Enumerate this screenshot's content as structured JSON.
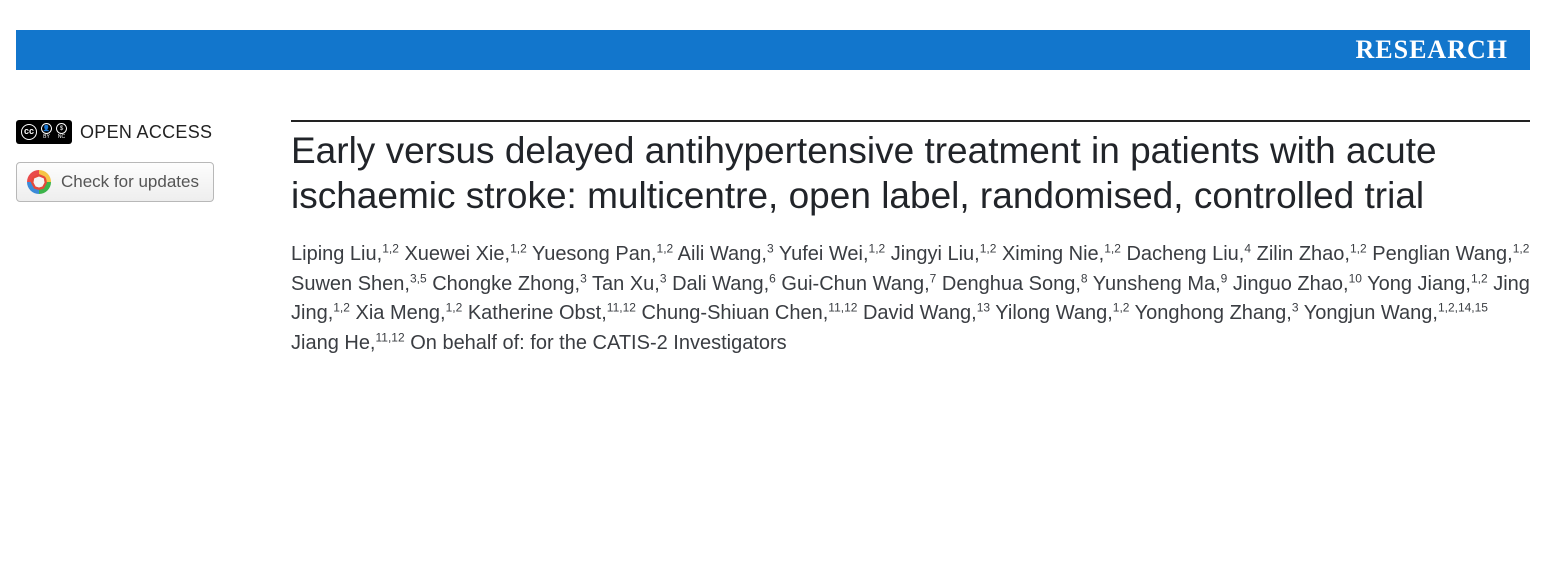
{
  "banner": {
    "label": "RESEARCH",
    "background_color": "#1276cc",
    "text_color": "#ffffff"
  },
  "sidebar": {
    "open_access_label": "OPEN ACCESS",
    "cc_badge": {
      "cc": "cc",
      "by": "BY",
      "nc": "NC"
    },
    "check_updates_label": "Check for updates"
  },
  "article": {
    "title": "Early versus delayed antihypertensive treatment in patients with acute ischaemic stroke: multicentre, open label, randomised, controlled trial",
    "authors": [
      {
        "name": "Liping Liu",
        "affil": "1,2"
      },
      {
        "name": "Xuewei Xie",
        "affil": "1,2"
      },
      {
        "name": "Yuesong Pan",
        "affil": "1,2"
      },
      {
        "name": "Aili Wang",
        "affil": "3"
      },
      {
        "name": "Yufei Wei",
        "affil": "1,2"
      },
      {
        "name": "Jingyi Liu",
        "affil": "1,2"
      },
      {
        "name": "Ximing Nie",
        "affil": "1,2"
      },
      {
        "name": "Dacheng Liu",
        "affil": "4"
      },
      {
        "name": "Zilin Zhao",
        "affil": "1,2"
      },
      {
        "name": "Penglian Wang",
        "affil": "1,2"
      },
      {
        "name": "Suwen Shen",
        "affil": "3,5"
      },
      {
        "name": "Chongke Zhong",
        "affil": "3"
      },
      {
        "name": "Tan Xu",
        "affil": "3"
      },
      {
        "name": "Dali Wang",
        "affil": "6"
      },
      {
        "name": "Gui-Chun Wang",
        "affil": "7"
      },
      {
        "name": "Denghua Song",
        "affil": "8"
      },
      {
        "name": "Yunsheng Ma",
        "affil": "9"
      },
      {
        "name": "Jinguo Zhao",
        "affil": "10"
      },
      {
        "name": "Yong Jiang",
        "affil": "1,2"
      },
      {
        "name": "Jing Jing",
        "affil": "1,2"
      },
      {
        "name": "Xia Meng",
        "affil": "1,2"
      },
      {
        "name": "Katherine Obst",
        "affil": "11,12"
      },
      {
        "name": "Chung-Shiuan Chen",
        "affil": "11,12"
      },
      {
        "name": "David Wang",
        "affil": "13"
      },
      {
        "name": "Yilong Wang",
        "affil": "1,2"
      },
      {
        "name": "Yonghong Zhang",
        "affil": "3"
      },
      {
        "name": "Yongjun Wang",
        "affil": "1,2,14,15"
      },
      {
        "name": "Jiang He",
        "affil": "11,12"
      }
    ],
    "on_behalf": "On behalf of: for the CATIS-2 Investigators"
  },
  "colors": {
    "title_color": "#212429",
    "author_color": "#3a3d42",
    "rule_color": "#222222"
  }
}
